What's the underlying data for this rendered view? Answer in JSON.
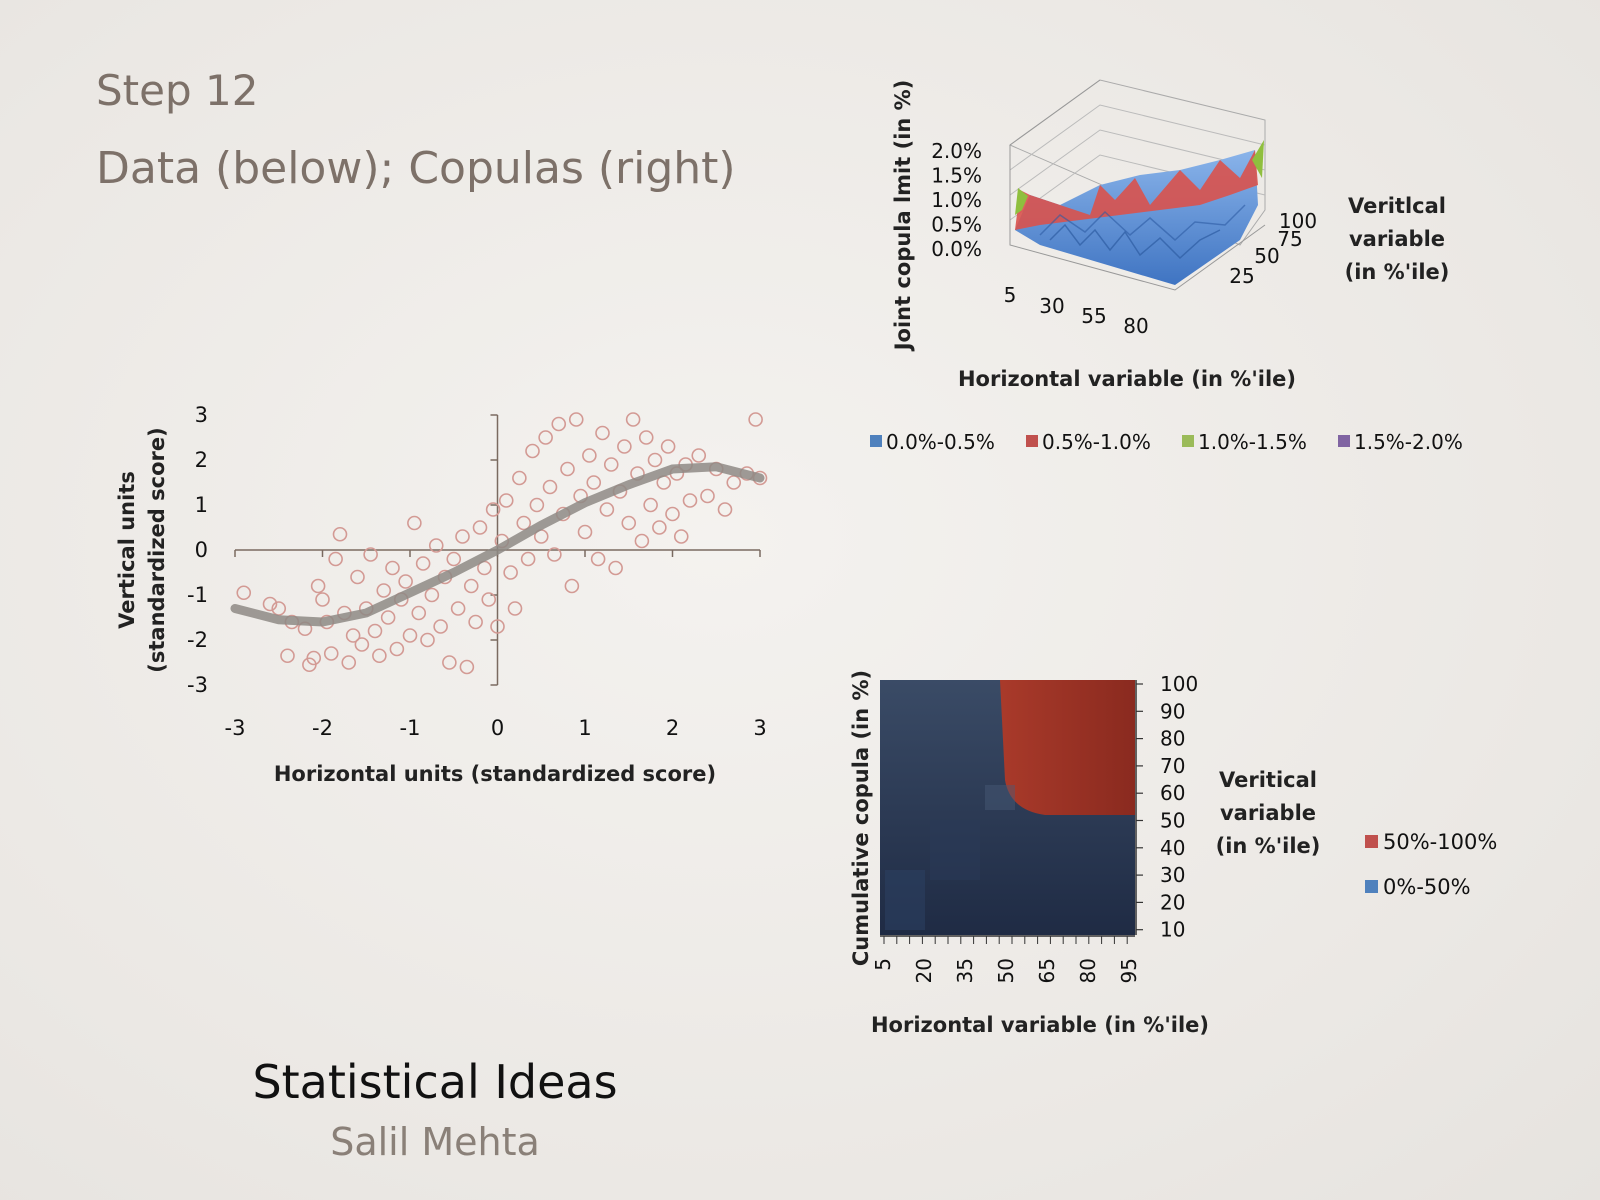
{
  "slide": {
    "step_title": "Step 12",
    "subtitle": "Data (below); Copulas (right)",
    "footer_title": "Statistical Ideas",
    "footer_author": "Salil Mehta"
  },
  "chart_data": [
    {
      "type": "scatter",
      "xlabel": "Horizontal units (standardized score)",
      "ylabel_line1": "Vertical units",
      "ylabel_line2": "(standardized score)",
      "xlim": [
        -3,
        3
      ],
      "ylim": [
        -3,
        3
      ],
      "xticks": [
        "-3",
        "-2",
        "-1",
        "0",
        "1",
        "2",
        "3"
      ],
      "yticks": [
        "3",
        "2",
        "1",
        "0",
        "-1",
        "-2",
        "-3"
      ],
      "point_color": "#d39a94",
      "curve_color": "#8e8a85",
      "points": [
        [
          -2.9,
          -0.95
        ],
        [
          -2.6,
          -1.2
        ],
        [
          -2.5,
          -1.3
        ],
        [
          -2.4,
          -2.35
        ],
        [
          -2.35,
          -1.6
        ],
        [
          -2.2,
          -1.75
        ],
        [
          -2.15,
          -2.55
        ],
        [
          -2.1,
          -2.4
        ],
        [
          -2.05,
          -0.8
        ],
        [
          -2.0,
          -1.1
        ],
        [
          -1.95,
          -1.6
        ],
        [
          -1.9,
          -2.3
        ],
        [
          -1.85,
          -0.2
        ],
        [
          -1.8,
          0.35
        ],
        [
          -1.75,
          -1.4
        ],
        [
          -1.7,
          -2.5
        ],
        [
          -1.65,
          -1.9
        ],
        [
          -1.6,
          -0.6
        ],
        [
          -1.55,
          -2.1
        ],
        [
          -1.5,
          -1.3
        ],
        [
          -1.45,
          -0.1
        ],
        [
          -1.4,
          -1.8
        ],
        [
          -1.35,
          -2.35
        ],
        [
          -1.3,
          -0.9
        ],
        [
          -1.25,
          -1.5
        ],
        [
          -1.2,
          -0.4
        ],
        [
          -1.15,
          -2.2
        ],
        [
          -1.1,
          -1.1
        ],
        [
          -1.05,
          -0.7
        ],
        [
          -1.0,
          -1.9
        ],
        [
          -0.95,
          0.6
        ],
        [
          -0.9,
          -1.4
        ],
        [
          -0.85,
          -0.3
        ],
        [
          -0.8,
          -2.0
        ],
        [
          -0.75,
          -1.0
        ],
        [
          -0.7,
          0.1
        ],
        [
          -0.65,
          -1.7
        ],
        [
          -0.6,
          -0.6
        ],
        [
          -0.55,
          -2.5
        ],
        [
          -0.5,
          -0.2
        ],
        [
          -0.45,
          -1.3
        ],
        [
          -0.4,
          0.3
        ],
        [
          -0.35,
          -2.6
        ],
        [
          -0.3,
          -0.8
        ],
        [
          -0.25,
          -1.6
        ],
        [
          -0.2,
          0.5
        ],
        [
          -0.15,
          -0.4
        ],
        [
          -0.1,
          -1.1
        ],
        [
          -0.05,
          0.9
        ],
        [
          0.0,
          -1.7
        ],
        [
          0.05,
          0.2
        ],
        [
          0.1,
          1.1
        ],
        [
          0.15,
          -0.5
        ],
        [
          0.2,
          -1.3
        ],
        [
          0.25,
          1.6
        ],
        [
          0.3,
          0.6
        ],
        [
          0.35,
          -0.2
        ],
        [
          0.4,
          2.2
        ],
        [
          0.45,
          1.0
        ],
        [
          0.5,
          0.3
        ],
        [
          0.55,
          2.5
        ],
        [
          0.6,
          1.4
        ],
        [
          0.65,
          -0.1
        ],
        [
          0.7,
          2.8
        ],
        [
          0.75,
          0.8
        ],
        [
          0.8,
          1.8
        ],
        [
          0.85,
          -0.8
        ],
        [
          0.9,
          2.9
        ],
        [
          0.95,
          1.2
        ],
        [
          1.0,
          0.4
        ],
        [
          1.05,
          2.1
        ],
        [
          1.1,
          1.5
        ],
        [
          1.15,
          -0.2
        ],
        [
          1.2,
          2.6
        ],
        [
          1.25,
          0.9
        ],
        [
          1.3,
          1.9
        ],
        [
          1.35,
          -0.4
        ],
        [
          1.4,
          1.3
        ],
        [
          1.45,
          2.3
        ],
        [
          1.5,
          0.6
        ],
        [
          1.55,
          2.9
        ],
        [
          1.6,
          1.7
        ],
        [
          1.65,
          0.2
        ],
        [
          1.7,
          2.5
        ],
        [
          1.75,
          1.0
        ],
        [
          1.8,
          2.0
        ],
        [
          1.85,
          0.5
        ],
        [
          1.9,
          1.5
        ],
        [
          1.95,
          2.3
        ],
        [
          2.0,
          0.8
        ],
        [
          2.05,
          1.7
        ],
        [
          2.1,
          0.3
        ],
        [
          2.15,
          1.9
        ],
        [
          2.2,
          1.1
        ],
        [
          2.3,
          2.1
        ],
        [
          2.4,
          1.2
        ],
        [
          2.5,
          1.8
        ],
        [
          2.6,
          0.9
        ],
        [
          2.7,
          1.5
        ],
        [
          2.85,
          1.7
        ],
        [
          2.95,
          2.9
        ],
        [
          3.0,
          1.6
        ]
      ],
      "curve_points": [
        [
          -3,
          -1.3
        ],
        [
          -2.5,
          -1.55
        ],
        [
          -2,
          -1.6
        ],
        [
          -1.5,
          -1.4
        ],
        [
          -1,
          -0.95
        ],
        [
          -0.5,
          -0.5
        ],
        [
          0,
          0
        ],
        [
          0.5,
          0.55
        ],
        [
          1,
          1.05
        ],
        [
          1.5,
          1.45
        ],
        [
          2,
          1.8
        ],
        [
          2.5,
          1.85
        ],
        [
          3,
          1.6
        ]
      ]
    },
    {
      "type": "surface3d",
      "ylabel": "Joint copula lmit (in %)",
      "xlabel": "Horizontal variable (in %'ile)",
      "depth_label_line1": "Veritlcal",
      "depth_label_line2": "variable",
      "depth_label_line3": "(in %'ile)",
      "zticks": [
        "2.0%",
        "1.5%",
        "1.0%",
        "0.5%",
        "0.0%"
      ],
      "xticks": [
        "5",
        "30",
        "55",
        "80"
      ],
      "depth_ticks": [
        "25",
        "50",
        "75",
        "100"
      ],
      "legend": [
        {
          "label": "0.0%-0.5%",
          "color": "#4f81bd"
        },
        {
          "label": "0.5%-1.0%",
          "color": "#c0504d"
        },
        {
          "label": "1.0%-1.5%",
          "color": "#9bbb59"
        },
        {
          "label": "1.5%-2.0%",
          "color": "#8064a2"
        }
      ]
    },
    {
      "type": "heatmap",
      "ylabel": "Cumulative copula (in %)",
      "xlabel": "Horizontal variable (in %'ile)",
      "side_label_line1": "Veritical",
      "side_label_line2": "variable",
      "side_label_line3": "(in %'ile)",
      "yticks": [
        "100",
        "90",
        "80",
        "70",
        "60",
        "50",
        "40",
        "30",
        "20",
        "10"
      ],
      "xticks": [
        "5",
        "20",
        "35",
        "50",
        "65",
        "80",
        "95"
      ],
      "legend": [
        {
          "label": "50%-100%",
          "color": "#c0504d"
        },
        {
          "label": "0%-50%",
          "color": "#4f81bd"
        }
      ]
    }
  ]
}
